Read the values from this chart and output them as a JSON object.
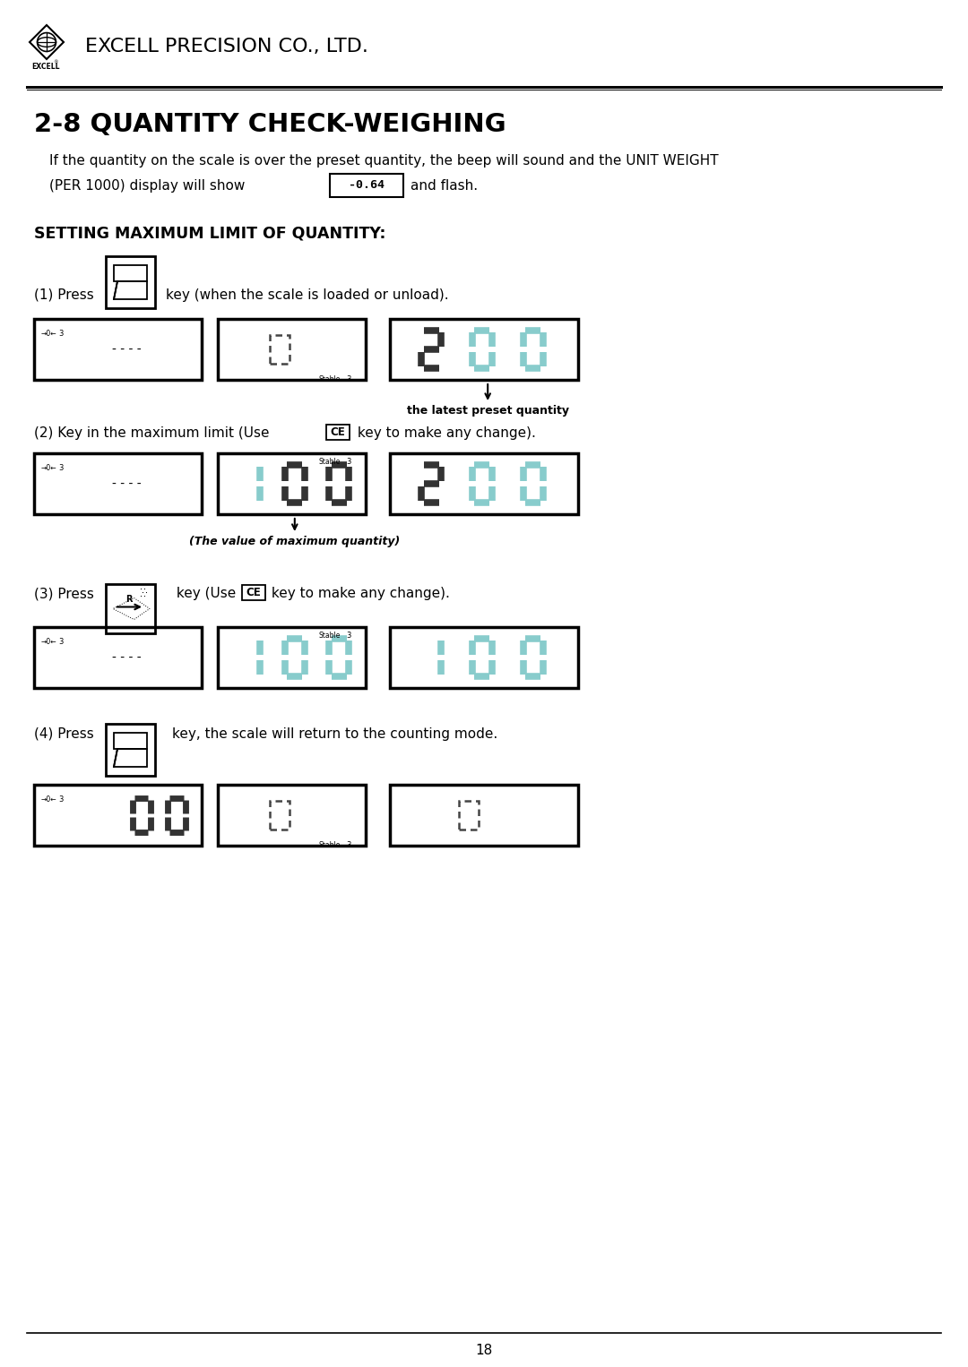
{
  "title": "2-8 QUANTITY CHECK-WEIGHING",
  "company": "EXCELL PRECISION CO., LTD.",
  "bg_color": "#ffffff",
  "text_color": "#000000",
  "page_number": "18",
  "body_text_1": "If the quantity on the scale is over the preset quantity, the beep will sound and the UNIT WEIGHT",
  "body_text_2": "(PER 1000) display will show",
  "body_text_3": "and flash.",
  "section_title": "SETTING MAXIMUM LIMIT OF QUANTITY:",
  "step1_text": "key (when the scale is loaded or unload).",
  "step2_text_a": "(2) Key in the maximum limit (Use ",
  "step2_text_b": "CE",
  "step2_text_c": " key to make any change).",
  "step3_text_a": "(3) Press",
  "step3_text_b": " key (Use ",
  "step3_text_c": "CE",
  "step3_text_d": " key to make any change).",
  "step4_text": "key, the scale will return to the counting mode.",
  "arrow_label1": "the latest preset quantity",
  "arrow_label2": "(The value of maximum quantity)",
  "seg_dark": "#333333",
  "seg_cyan": "#88CCCC",
  "seg_black": "#111111"
}
